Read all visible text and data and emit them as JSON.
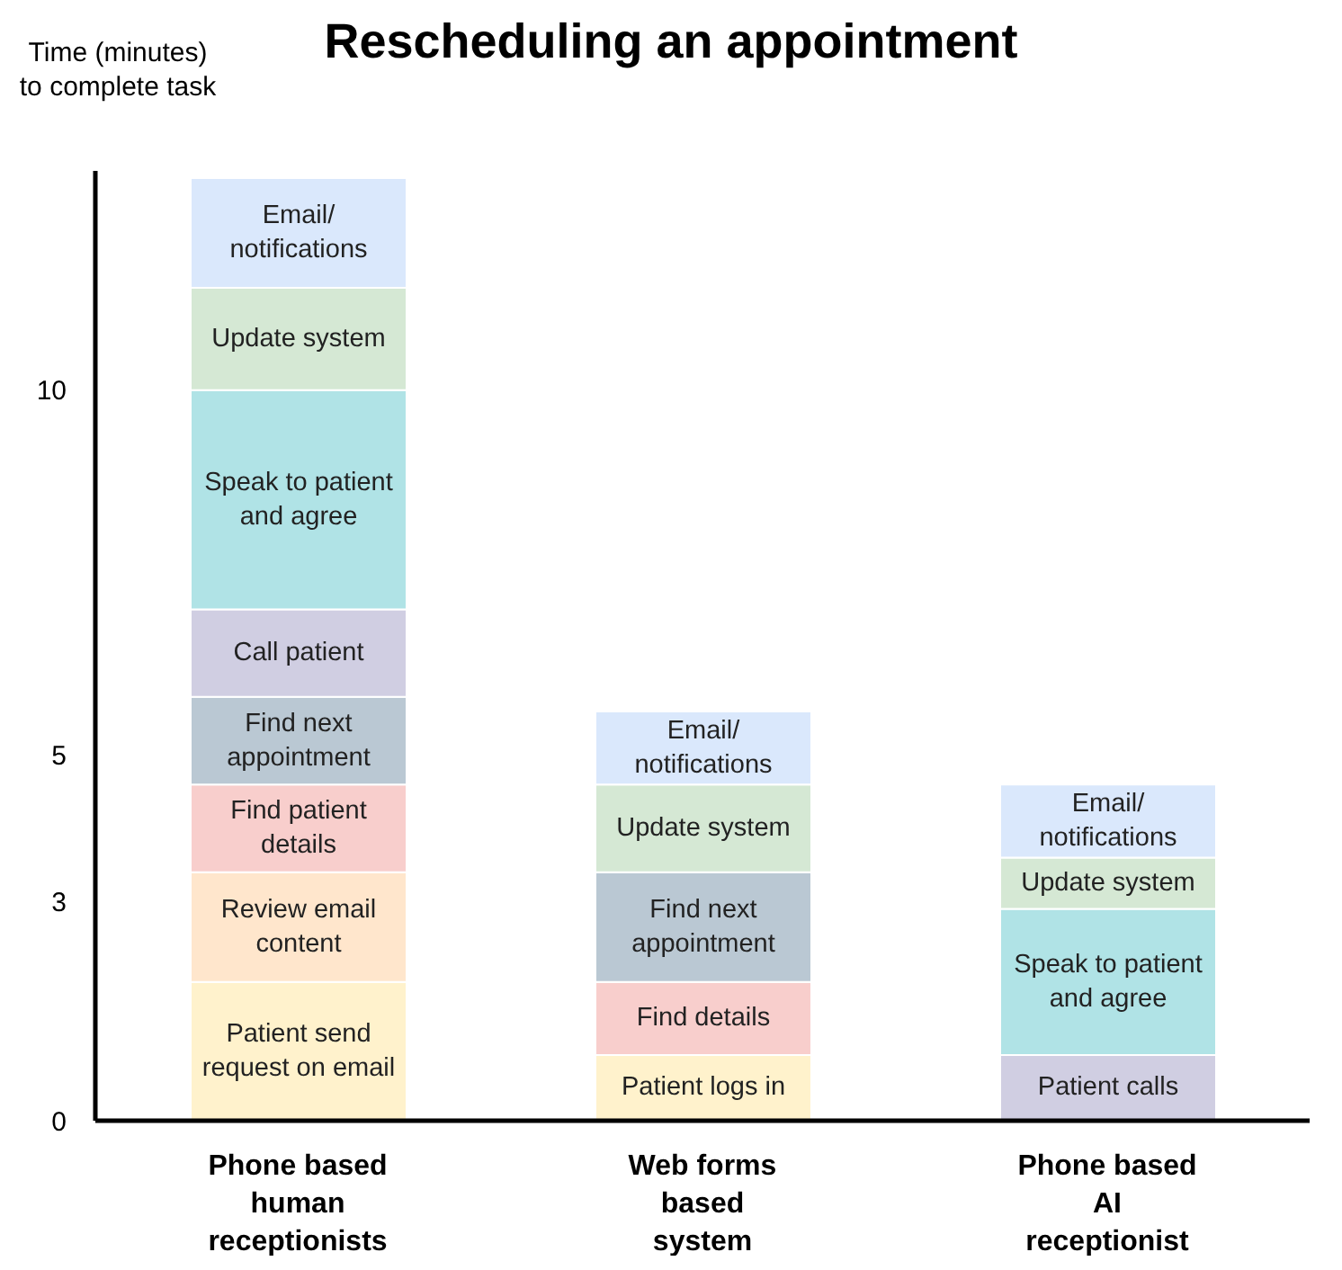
{
  "chart_data": {
    "type": "bar",
    "stacked": true,
    "title": "Rescheduling an appointment",
    "ylabel": "Time (minutes) to complete task",
    "categories": [
      "Phone based human receptionists",
      "Web forms based system",
      "Phone based AI receptionist"
    ],
    "ylim": [
      0,
      13
    ],
    "yticks": [
      0,
      3,
      5,
      10
    ],
    "grid": false,
    "legend": false,
    "series": [
      {
        "name": "Patient send request on email",
        "color": "#fff2cc",
        "values": [
          1.9,
          null,
          null
        ]
      },
      {
        "name": "Patient logs in",
        "color": "#fff2cc",
        "values": [
          null,
          0.9,
          null
        ]
      },
      {
        "name": "Patient calls",
        "color": "#d0cee2",
        "values": [
          null,
          null,
          0.9
        ]
      },
      {
        "name": "Review email content",
        "color": "#ffe6cc",
        "values": [
          1.5,
          null,
          null
        ]
      },
      {
        "name": "Find details",
        "color": "#f8cecc",
        "values": [
          null,
          1.0,
          null
        ]
      },
      {
        "name": "Find patient details",
        "color": "#f8cecc",
        "values": [
          1.2,
          null,
          null
        ]
      },
      {
        "name": "Find next appointment",
        "color": "#bac8d3",
        "values": [
          1.2,
          1.5,
          null
        ]
      },
      {
        "name": "Call patient",
        "color": "#d0cee2",
        "values": [
          1.2,
          null,
          null
        ]
      },
      {
        "name": "Speak to patient and agree",
        "color": "#b0e3e6",
        "values": [
          3.0,
          null,
          2.0
        ]
      },
      {
        "name": "Update system",
        "color": "#d5e8d4",
        "values": [
          1.4,
          1.2,
          0.7
        ]
      },
      {
        "name": "Email/notifications",
        "color": "#dae8fc",
        "values": [
          1.5,
          1.0,
          1.0
        ]
      }
    ]
  }
}
